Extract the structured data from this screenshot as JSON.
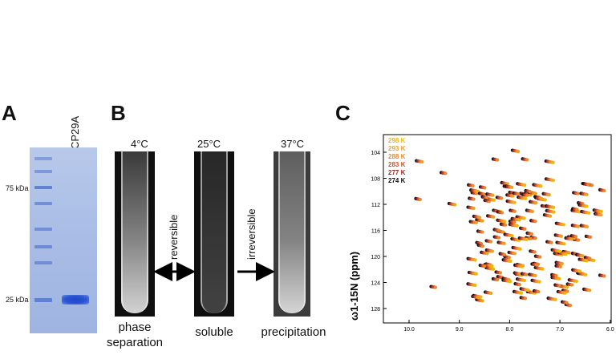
{
  "panel_labels": {
    "a": "A",
    "b": "B",
    "c": "C"
  },
  "panel_a": {
    "lane_label": "CP29A",
    "markers": [
      "75 kDa",
      "25 kDa"
    ],
    "colors": {
      "gel": "#a9bde6",
      "band": "#1f46c8"
    }
  },
  "panel_b": {
    "temperatures": [
      "4°C",
      "25°C",
      "37°C"
    ],
    "arrows": [
      "reversible",
      "irreversible"
    ],
    "states": [
      "phase\nseparation",
      "soluble",
      "precipitation"
    ]
  },
  "panel_c": {
    "y_axis_label": "ω1-15N (ppm)",
    "y_ticks": [
      "104",
      "108",
      "112",
      "116",
      "120",
      "124",
      "128"
    ],
    "x_ticks": [
      "10.0",
      "9.0",
      "8.0",
      "7.0",
      "6.0"
    ],
    "temperature_legend": [
      {
        "label": "298 K",
        "color": "#f2b705"
      },
      {
        "label": "293 K",
        "color": "#f0a020"
      },
      {
        "label": "288 K",
        "color": "#e8892b"
      },
      {
        "label": "283 K",
        "color": "#d0522b"
      },
      {
        "label": "277 K",
        "color": "#a0281f"
      },
      {
        "label": "274 K",
        "color": "#111111"
      }
    ]
  }
}
